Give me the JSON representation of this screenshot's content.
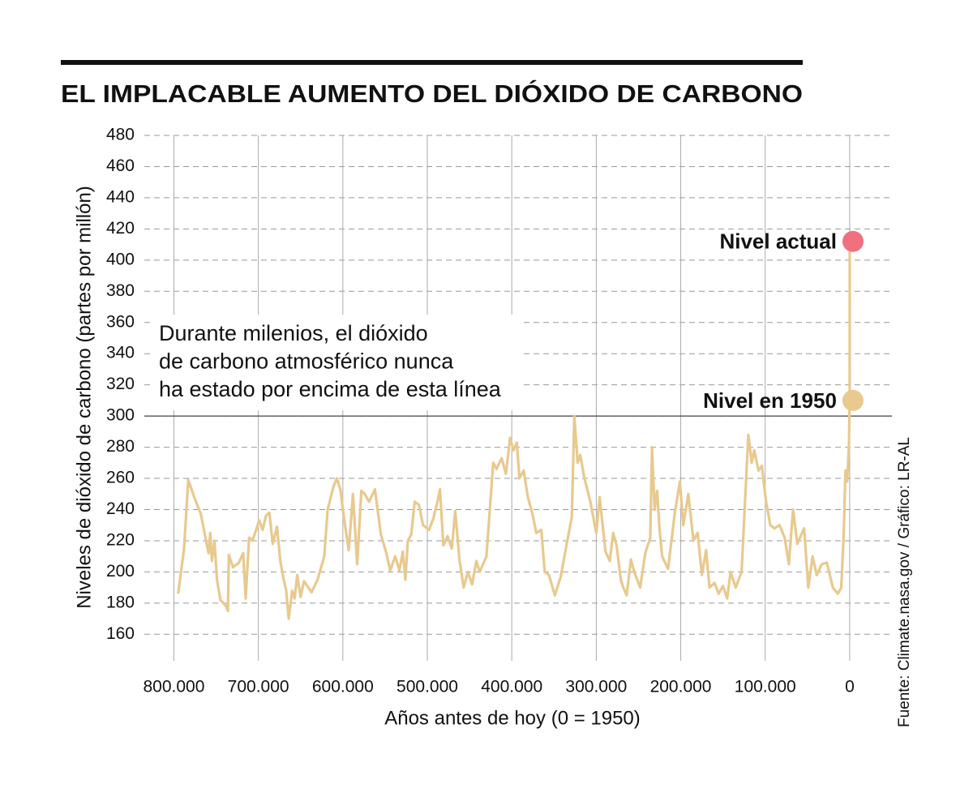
{
  "chart_data": {
    "type": "line",
    "title": "EL IMPLACABLE AUMENTO DEL DIÓXIDO DE CARBONO",
    "x_label": "Años antes de hoy (0 = 1950)",
    "y_label": "Niveles de dióxido de carbono (partes por millón)",
    "source": "Fuente: Climate.nasa.gov / Gráfico: LR-AL",
    "color": "#e8c98e",
    "xlim": [
      835000,
      -50000
    ],
    "ylim": [
      143,
      480
    ],
    "xticks": [
      {
        "value": 800000,
        "label": "800.000"
      },
      {
        "value": 700000,
        "label": "700.000"
      },
      {
        "value": 600000,
        "label": "600.000"
      },
      {
        "value": 500000,
        "label": "500.000"
      },
      {
        "value": 400000,
        "label": "400.000"
      },
      {
        "value": 300000,
        "label": "300.000"
      },
      {
        "value": 200000,
        "label": "200.000"
      },
      {
        "value": 100000,
        "label": "100.000"
      },
      0
    ],
    "yticks": [
      160,
      180,
      200,
      220,
      240,
      260,
      280,
      300,
      320,
      340,
      360,
      380,
      400,
      420,
      440,
      460,
      480
    ],
    "grid": true,
    "threshold": {
      "value": 300,
      "lines": [
        "Durante milenios, el dióxido",
        "de carbono atmosférico nunca",
        "ha estado por encima de esta línea"
      ]
    },
    "markers": [
      {
        "label": "Nivel actual",
        "x": -70,
        "value": 412,
        "color": "#f07080"
      },
      {
        "label": "Nivel en 1950",
        "x": 0,
        "value": 310,
        "color": "#e8c98e"
      }
    ],
    "x": [
      795000,
      788000,
      783000,
      776000,
      768000,
      762000,
      759000,
      757000,
      755000,
      752000,
      749000,
      745000,
      738000,
      736000,
      735000,
      730000,
      723000,
      718000,
      715000,
      711000,
      707000,
      699000,
      695000,
      691000,
      687000,
      683000,
      678000,
      674000,
      670000,
      667000,
      664000,
      660000,
      657000,
      654000,
      650000,
      646000,
      637000,
      630000,
      622000,
      618000,
      611000,
      607000,
      603000,
      598000,
      593000,
      588000,
      583000,
      578000,
      574000,
      569000,
      562000,
      555000,
      549000,
      544000,
      538000,
      533000,
      529000,
      526000,
      523000,
      519000,
      515000,
      510000,
      505000,
      498000,
      493000,
      488000,
      485000,
      481000,
      476000,
      471000,
      467000,
      462000,
      457000,
      452000,
      447000,
      442000,
      438000,
      430000,
      422000,
      418000,
      412000,
      407000,
      402000,
      398000,
      394000,
      391000,
      386000,
      381000,
      375000,
      371000,
      365000,
      361000,
      356000,
      349000,
      342000,
      335000,
      329000,
      326000,
      322000,
      319000,
      314000,
      307000,
      300000,
      296000,
      289000,
      284000,
      280000,
      276000,
      271000,
      268000,
      264000,
      259000,
      255000,
      248000,
      242000,
      236000,
      234000,
      231000,
      228000,
      225000,
      222000,
      215000,
      207000,
      201000,
      197000,
      191000,
      185000,
      180000,
      175000,
      170000,
      166000,
      160000,
      155000,
      150000,
      145000,
      141000,
      135000,
      128000,
      120000,
      116000,
      113000,
      108000,
      104000,
      99000,
      94000,
      89000,
      83000,
      77000,
      72000,
      67000,
      62000,
      54000,
      49000,
      44000,
      39000,
      33000,
      27000,
      20000,
      14000,
      10000,
      7000,
      5000,
      3000,
      1000,
      0,
      -70
    ],
    "values": [
      186,
      215,
      259,
      248,
      237,
      220,
      212,
      225,
      207,
      220,
      195,
      182,
      178,
      175,
      211,
      203,
      206,
      212,
      183,
      222,
      220,
      233,
      227,
      236,
      238,
      218,
      229,
      207,
      195,
      188,
      170,
      188,
      183,
      198,
      184,
      194,
      187,
      195,
      210,
      240,
      255,
      260,
      253,
      232,
      214,
      250,
      205,
      252,
      250,
      245,
      253,
      224,
      213,
      201,
      210,
      201,
      213,
      195,
      220,
      224,
      245,
      243,
      230,
      227,
      234,
      245,
      253,
      217,
      223,
      215,
      239,
      208,
      190,
      200,
      192,
      207,
      200,
      210,
      270,
      266,
      273,
      263,
      286,
      278,
      283,
      260,
      265,
      248,
      236,
      225,
      227,
      200,
      198,
      185,
      197,
      218,
      235,
      300,
      270,
      275,
      260,
      245,
      225,
      248,
      213,
      207,
      225,
      217,
      195,
      190,
      185,
      208,
      200,
      190,
      212,
      222,
      280,
      240,
      252,
      227,
      210,
      202,
      238,
      258,
      230,
      250,
      220,
      225,
      198,
      214,
      190,
      193,
      186,
      191,
      183,
      200,
      190,
      200,
      288,
      270,
      278,
      265,
      268,
      245,
      230,
      228,
      230,
      222,
      205,
      240,
      218,
      228,
      190,
      210,
      198,
      205,
      206,
      190,
      186,
      190,
      225,
      265,
      258,
      280,
      310,
      412
    ]
  }
}
